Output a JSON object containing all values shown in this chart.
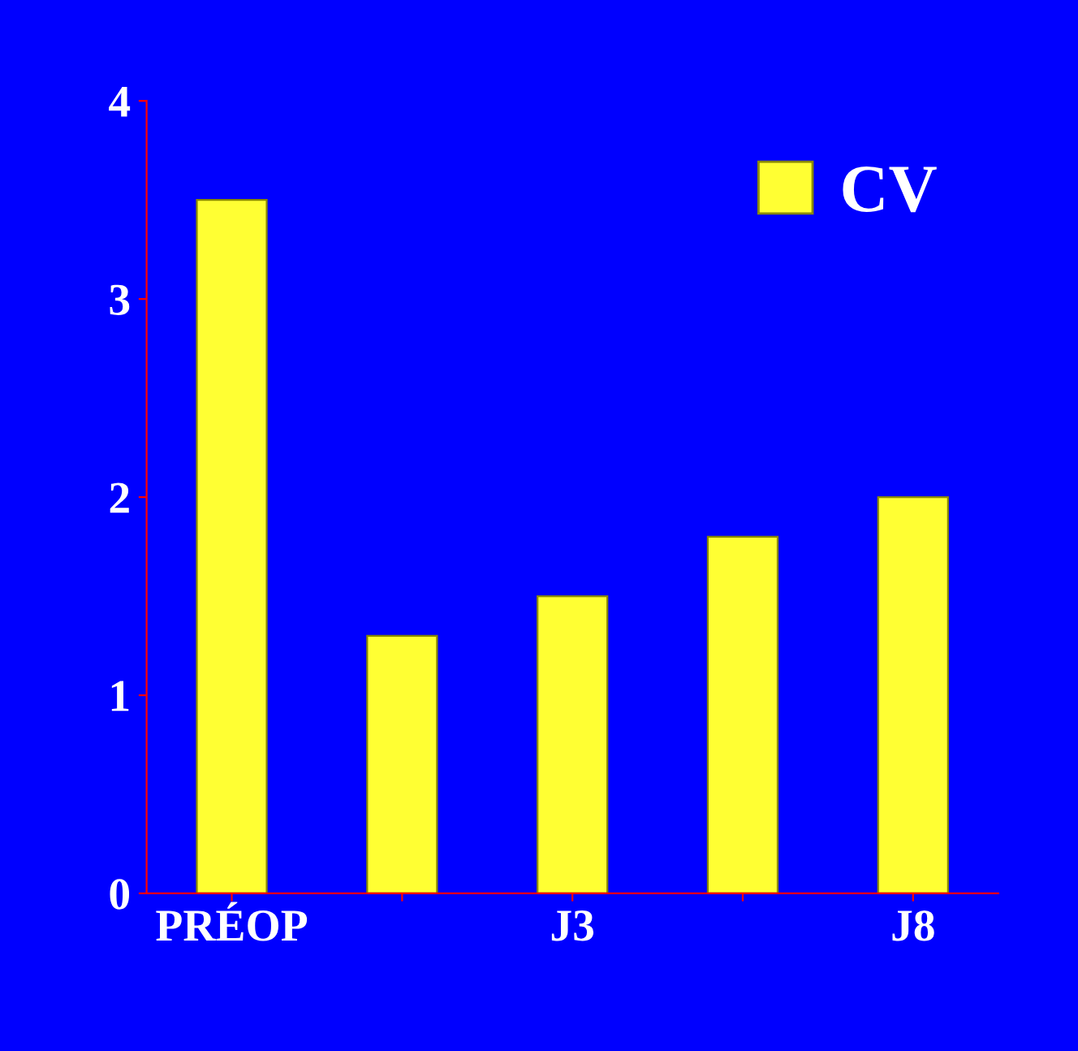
{
  "chart_data": {
    "type": "bar",
    "categories": [
      "PRÉOP",
      null,
      "J3",
      null,
      "J8"
    ],
    "series": [
      {
        "name": "CV",
        "color": "#ffff33",
        "values": [
          3.5,
          1.3,
          1.5,
          1.8,
          2.0
        ]
      }
    ],
    "ylim": [
      0,
      4
    ],
    "yticks": [
      0,
      1,
      2,
      3,
      4
    ],
    "grid": false,
    "legend": "top right"
  }
}
